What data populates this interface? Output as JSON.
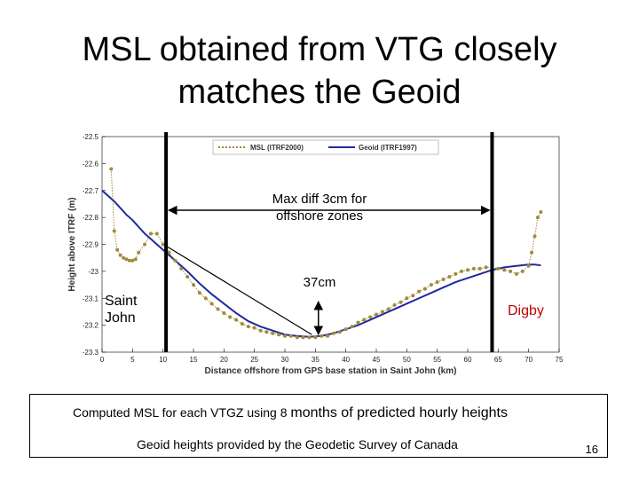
{
  "slide": {
    "title_line1": "MSL obtained from VTG closely",
    "title_line2": "matches the Geoid",
    "footer_line1_part1": "Computed MSL for each VTGZ using 8 ",
    "footer_line1_part2": "months of predicted hourly heights",
    "footer_line2": "Geoid heights provided by the Geodetic Survey of Canada",
    "page_number": "16"
  },
  "annotations": {
    "max_diff_line1": "Max diff 3cm for",
    "max_diff_line2": "offshore zones",
    "diff_37": "37cm",
    "saint_john_line1": "Saint",
    "saint_john_line2": "John",
    "digby": "Digby"
  },
  "colors": {
    "msl": "#a08a3c",
    "geoid": "#1f2a9c",
    "digby": "#c00000"
  },
  "chart_data": {
    "type": "line",
    "xlabel": "Distance offshore from GPS base station in Saint John (km)",
    "ylabel": "Height above ITRF (m)",
    "xlim": [
      0,
      75
    ],
    "ylim": [
      -23.3,
      -22.5
    ],
    "xticks": [
      0,
      5,
      10,
      15,
      20,
      25,
      30,
      35,
      40,
      45,
      50,
      55,
      60,
      65,
      70,
      75
    ],
    "yticks": [
      -22.5,
      -22.6,
      -22.7,
      -22.8,
      -22.9,
      -23,
      -23.1,
      -23.2,
      -23.3
    ],
    "legend": "top-right",
    "vertical_lines_x": [
      10.5,
      64
    ],
    "series": [
      {
        "name": "MSL (ITRF2000)",
        "style": "dotted-markers",
        "x": [
          1.5,
          2,
          2.5,
          3,
          3.5,
          4,
          4.5,
          5,
          5.5,
          6,
          7,
          8,
          9,
          10,
          11,
          12,
          13,
          14,
          15,
          16,
          17,
          18,
          19,
          20,
          21,
          22,
          23,
          24,
          25,
          26,
          27,
          28,
          29,
          30,
          31,
          32,
          33,
          34,
          35,
          36,
          37,
          38,
          39,
          40,
          41,
          42,
          43,
          44,
          45,
          46,
          47,
          48,
          49,
          50,
          51,
          52,
          53,
          54,
          55,
          56,
          57,
          58,
          59,
          60,
          61,
          62,
          63,
          64,
          65,
          66,
          67,
          68,
          69,
          70,
          70.5,
          71,
          71.5,
          72
        ],
        "y": [
          -22.62,
          -22.85,
          -22.92,
          -22.94,
          -22.95,
          -22.955,
          -22.96,
          -22.96,
          -22.955,
          -22.93,
          -22.9,
          -22.86,
          -22.86,
          -22.9,
          -22.93,
          -22.96,
          -22.99,
          -23.02,
          -23.05,
          -23.08,
          -23.1,
          -23.12,
          -23.14,
          -23.155,
          -23.17,
          -23.18,
          -23.195,
          -23.205,
          -23.21,
          -23.22,
          -23.225,
          -23.23,
          -23.235,
          -23.24,
          -23.24,
          -23.245,
          -23.245,
          -23.245,
          -23.245,
          -23.24,
          -23.24,
          -23.23,
          -23.225,
          -23.215,
          -23.205,
          -23.19,
          -23.18,
          -23.17,
          -23.16,
          -23.15,
          -23.14,
          -23.125,
          -23.115,
          -23.1,
          -23.09,
          -23.075,
          -23.065,
          -23.05,
          -23.04,
          -23.03,
          -23.02,
          -23.01,
          -23.0,
          -22.995,
          -22.99,
          -22.99,
          -22.985,
          -22.985,
          -22.99,
          -22.995,
          -23.0,
          -23.01,
          -23.0,
          -22.98,
          -22.93,
          -22.87,
          -22.8,
          -22.78
        ]
      },
      {
        "name": "Geoid (ITRF1997)",
        "style": "solid",
        "x": [
          0,
          1,
          2,
          3,
          4,
          5,
          6,
          7,
          8,
          9,
          10,
          12,
          14,
          16,
          18,
          20,
          22,
          24,
          26,
          28,
          30,
          32,
          34,
          36,
          38,
          40,
          42,
          44,
          46,
          48,
          50,
          52,
          54,
          56,
          58,
          60,
          62,
          64,
          66,
          68,
          70,
          71,
          72
        ],
        "y": [
          -22.7,
          -22.72,
          -22.74,
          -22.765,
          -22.79,
          -22.81,
          -22.835,
          -22.86,
          -22.88,
          -22.9,
          -22.92,
          -22.96,
          -23.0,
          -23.045,
          -23.085,
          -23.12,
          -23.155,
          -23.185,
          -23.205,
          -23.22,
          -23.235,
          -23.24,
          -23.243,
          -23.24,
          -23.23,
          -23.215,
          -23.2,
          -23.18,
          -23.16,
          -23.14,
          -23.12,
          -23.1,
          -23.08,
          -23.06,
          -23.04,
          -23.025,
          -23.01,
          -22.995,
          -22.985,
          -22.98,
          -22.975,
          -22.975,
          -22.978
        ]
      }
    ]
  }
}
